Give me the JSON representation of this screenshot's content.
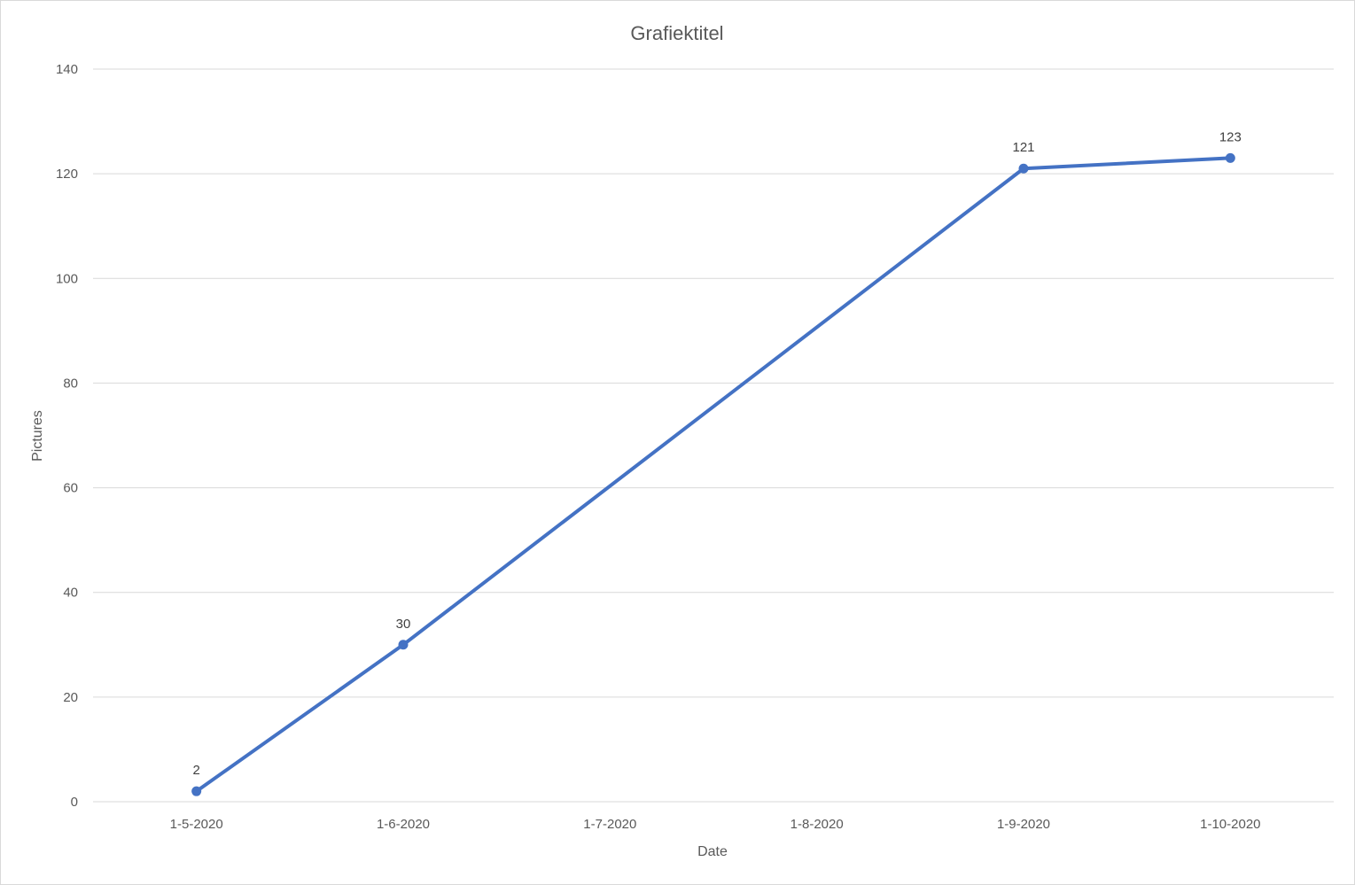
{
  "chart_data": {
    "type": "line",
    "title": "Grafiektitel",
    "xlabel": "Date",
    "ylabel": "Pictures",
    "x": [
      "1-5-2020",
      "1-6-2020",
      "1-7-2020",
      "1-8-2020",
      "1-9-2020",
      "1-10-2020"
    ],
    "series": [
      {
        "x": [
          "1-5-2020",
          "1-6-2020",
          "1-9-2020",
          "1-10-2020"
        ],
        "values": [
          2,
          30,
          121,
          123
        ],
        "color": "#4472c4"
      }
    ],
    "ylim": [
      0,
      140
    ],
    "yticks": [
      0,
      20,
      40,
      60,
      80,
      100,
      120,
      140
    ],
    "grid": true,
    "legend": "none",
    "data_labels": true
  }
}
